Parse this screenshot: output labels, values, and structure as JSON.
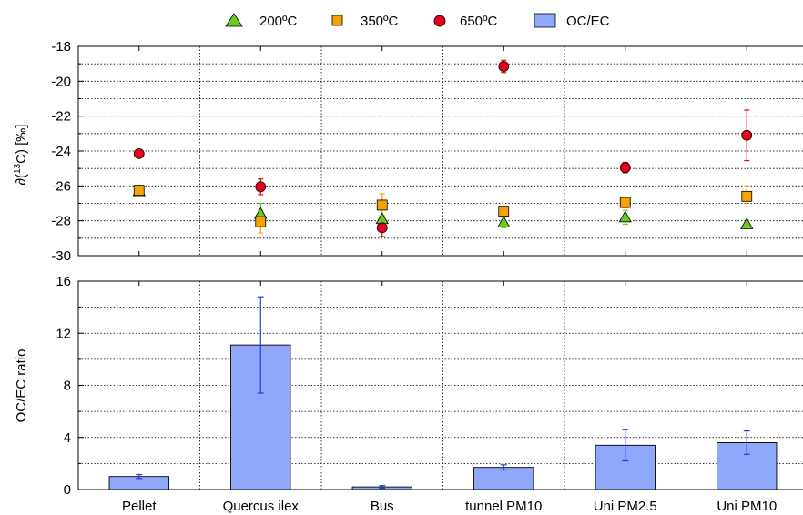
{
  "chart_data": [
    {
      "type": "scatter",
      "ylabel_prefix": "∂(",
      "ylabel_sup": "13",
      "ylabel_suffix": "C) [‰]",
      "ylim": [
        -30,
        -18
      ],
      "yticks": [
        -30,
        -28,
        -26,
        -24,
        -22,
        -20,
        -18
      ],
      "categories": [
        "Pellet",
        "Quercus ilex",
        "Bus",
        "tunnel PM10",
        "Uni PM2.5",
        "Uni PM10"
      ],
      "grid": true,
      "series": [
        {
          "name": "200ºC",
          "marker": "triangle",
          "color": "#66cc22",
          "error_color": "#66cc22",
          "values": [
            -26.3,
            -27.6,
            -27.9,
            -28.1,
            -27.8,
            -28.2
          ],
          "errors": [
            0.0,
            0.6,
            0.2,
            0.3,
            0.4,
            0.0
          ]
        },
        {
          "name": "350ºC",
          "marker": "square",
          "color": "#f5a300",
          "error_color": "#f5a300",
          "values": [
            -26.25,
            -28.05,
            -27.1,
            -27.45,
            -26.95,
            -26.6
          ],
          "errors": [
            0.0,
            0.65,
            0.65,
            0.2,
            0.3,
            0.6
          ]
        },
        {
          "name": "650ºC",
          "marker": "circle",
          "color": "#e8001c",
          "error_color": "#e8001c",
          "values": [
            -24.15,
            -26.05,
            -28.4,
            -19.15,
            -24.95,
            -23.1
          ],
          "errors": [
            0.0,
            0.45,
            0.5,
            0.35,
            0.3,
            1.45
          ]
        }
      ]
    },
    {
      "type": "bar",
      "ylabel": "OC/EC ratio",
      "ylim": [
        0,
        16
      ],
      "yticks": [
        0,
        4,
        8,
        12,
        16
      ],
      "categories": [
        "Pellet",
        "Quercus ilex",
        "Bus",
        "tunnel PM10",
        "Uni PM2.5",
        "Uni PM10"
      ],
      "grid": true,
      "series": [
        {
          "name": "OC/EC",
          "color": "#8fa8fa",
          "error_color": "#1f3fd8",
          "values": [
            1.0,
            11.1,
            0.2,
            1.7,
            3.4,
            3.6
          ],
          "errors": [
            0.15,
            3.7,
            0.1,
            0.2,
            1.2,
            0.9
          ]
        }
      ]
    }
  ],
  "legend": {
    "placement": "top-center",
    "items": [
      "200ºC",
      "350ºC",
      "650ºC",
      "OC/EC"
    ]
  }
}
